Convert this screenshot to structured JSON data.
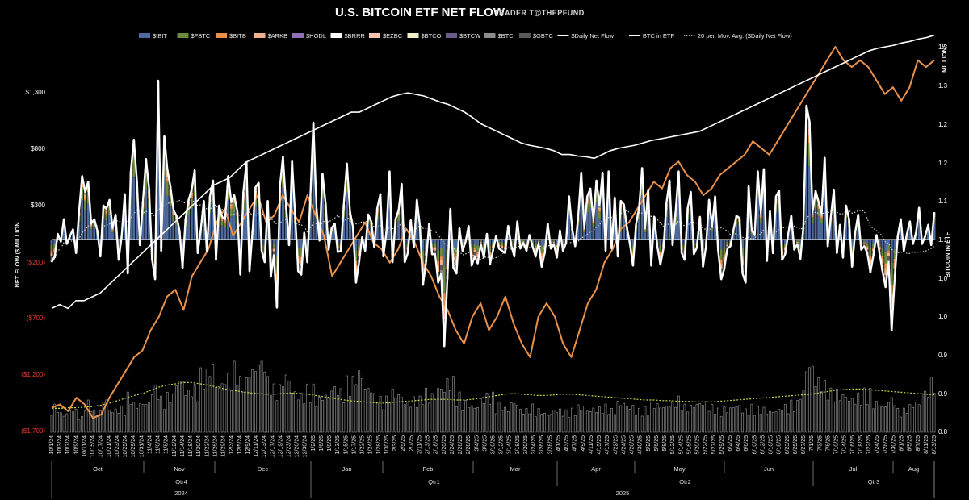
{
  "title": "U.S. BITCOIN ETF NET FLOW",
  "subtitle": "TRADER T@THEPFUND",
  "colors": {
    "IBIT": "#4e6a9c",
    "FBTC": "#6e8a3e",
    "BITB": "#e9914b",
    "ARKB": "#f2b08c",
    "HODL": "#8e6fb8",
    "BRRR": "#ffffff",
    "EZBC": "#f6c5b0",
    "BTCO": "#f3efc8",
    "BTCW": "#6b5a8e",
    "BTC": "#8c8c8c",
    "GBTC": "#5a5a5a",
    "daily": "#ffffff",
    "btc_in_etf": "#ffffff",
    "ma": "#d0d0d0",
    "price_line": "#e9914b",
    "volume": "#d9d9d9",
    "volume_ma": "#c8d84a",
    "negative_tick": "#e23a2a"
  },
  "chart_data": [
    {
      "type": "bar",
      "title": "U.S. BITCOIN ETF NET FLOW",
      "ylabel": "NET FLOW ($)MILLION",
      "y2label": "BITCOIN IN ETF",
      "y2unit": "MILLIONS",
      "ylim": [
        -1700,
        1800
      ],
      "y2lim": [
        0.8,
        1.35
      ],
      "yticks": [
        "$1,300",
        "$800",
        "$300",
        "($200)",
        "($700)",
        "($1,200)",
        "($1,700)"
      ],
      "y2ticks": [
        "1.3",
        "1.3",
        "1.2",
        "1.2",
        "1.1",
        "1.1",
        "1.0",
        "1.0",
        "0.9",
        "0.9",
        "0.8"
      ],
      "legend": [
        "$IBIT",
        "$FBTC",
        "$BITB",
        "$ARKB",
        "$HODL",
        "$BRRR",
        "$EZBC",
        "$BTCO",
        "$BTCW",
        "$BTC",
        "$GBTC",
        "$Daily Net Flow",
        "BTC in ETF",
        "20 per. Mov. Avg. ($Daily Net Flow)"
      ],
      "legend_placement": "top",
      "x_labels": [
        "10/1/24",
        "10/3/24",
        "10/7/24",
        "10/9/24",
        "10/11/24",
        "10/15/24",
        "10/17/24",
        "10/21/24",
        "10/23/24",
        "10/25/24",
        "10/29/24",
        "10/31/24",
        "11/4/24",
        "11/6/24",
        "11/8/24",
        "11/12/24",
        "11/14/24",
        "11/18/24",
        "11/20/24",
        "11/22/24",
        "11/26/24",
        "11/29/24",
        "12/3/24",
        "12/5/24",
        "12/9/24",
        "12/11/24",
        "12/13/24",
        "12/17/24",
        "12/19/24",
        "12/23/24",
        "12/26/24",
        "12/30/24",
        "1/2/25",
        "1/6/25",
        "1/8/25",
        "1/13/25",
        "1/15/25",
        "1/17/25",
        "1/22/25",
        "1/24/25",
        "1/28/25",
        "1/30/25",
        "2/3/25",
        "2/5/25",
        "2/7/25",
        "2/11/25",
        "2/13/25",
        "2/18/25",
        "2/20/25",
        "2/24/25",
        "2/26/25",
        "2/28/25",
        "3/4/25",
        "3/6/25",
        "3/10/25",
        "3/12/25",
        "3/14/25",
        "3/18/25",
        "3/20/25",
        "3/24/25",
        "3/26/25",
        "3/28/25",
        "4/1/25",
        "4/3/25",
        "4/7/25",
        "4/9/25",
        "4/11/25",
        "4/15/25",
        "4/17/25",
        "4/22/25",
        "4/24/25",
        "4/28/25",
        "4/30/25",
        "5/2/25",
        "5/6/25",
        "5/8/25",
        "5/12/25",
        "5/14/25",
        "5/16/25",
        "5/20/25",
        "5/22/25",
        "5/27/25",
        "5/29/25",
        "6/2/25",
        "6/4/25",
        "6/6/25",
        "6/10/25",
        "6/12/25",
        "6/16/25",
        "6/18/25",
        "6/23/25",
        "6/25/25",
        "6/27/25",
        "7/1/25",
        "7/3/25",
        "7/8/25",
        "7/10/25",
        "7/14/25",
        "7/16/25",
        "7/18/25",
        "7/22/25",
        "7/24/25",
        "7/28/25",
        "7/30/25",
        "8/1/25",
        "8/5/25",
        "8/7/25",
        "8/11/25",
        "8/13/25"
      ],
      "months": [
        "Oct",
        "Nov",
        "Dec",
        "Jan",
        "Feb",
        "Mar",
        "Apr",
        "May",
        "Jun",
        "Jul",
        "Aug"
      ],
      "quarters": [
        "Qtr4",
        "Qtr1",
        "Qtr2",
        "Qtr3"
      ],
      "years": [
        "2024",
        "2025"
      ],
      "series_daily_net_flow": [
        -200,
        -150,
        50,
        -20,
        180,
        -40,
        30,
        90,
        -120,
        250,
        560,
        420,
        510,
        140,
        180,
        80,
        -150,
        300,
        270,
        350,
        100,
        220,
        -180,
        30,
        400,
        -300,
        600,
        880,
        520,
        -50,
        340,
        710,
        450,
        -180,
        -350,
        1400,
        -100,
        910,
        620,
        470,
        260,
        210,
        80,
        -250,
        180,
        350,
        440,
        610,
        -120,
        90,
        340,
        -100,
        380,
        520,
        -180,
        300,
        200,
        180,
        560,
        330,
        390,
        250,
        -310,
        420,
        680,
        -280,
        80,
        460,
        500,
        -100,
        -200,
        340,
        -330,
        -140,
        -600,
        470,
        730,
        310,
        -50,
        690,
        210,
        -280,
        -310,
        60,
        -200,
        380,
        1030,
        280,
        -10,
        580,
        320,
        -90,
        100,
        140,
        -110,
        -100,
        310,
        670,
        250,
        110,
        -380,
        -200,
        20,
        -100,
        220,
        160,
        -70,
        280,
        400,
        -150,
        70,
        600,
        -200,
        180,
        260,
        490,
        -200,
        -120,
        170,
        -70,
        350,
        120,
        -400,
        -200,
        140,
        -130,
        -130,
        -380,
        -300,
        -940,
        -350,
        270,
        -250,
        -300,
        100,
        -100,
        -20,
        120,
        -230,
        -150,
        -210,
        -40,
        -160,
        50,
        -220,
        -100,
        30,
        -80,
        -100,
        -120,
        120,
        -50,
        -150,
        160,
        -80,
        -30,
        -100,
        40,
        -60,
        -150,
        -30,
        -240,
        -120,
        140,
        -80,
        -40,
        -160,
        80,
        -100,
        -30,
        380,
        100,
        -60,
        200,
        590,
        100,
        380,
        450,
        170,
        520,
        300,
        590,
        -100,
        600,
        -80,
        370,
        -150,
        340,
        310,
        110,
        -40,
        -230,
        130,
        280,
        630,
        100,
        440,
        -230,
        200,
        -60,
        -220,
        -80,
        320,
        520,
        -50,
        240,
        600,
        -120,
        -180,
        280,
        420,
        -130,
        -70,
        200,
        -240,
        -60,
        350,
        120,
        380,
        -100,
        -350,
        -260,
        -80,
        -60,
        80,
        210,
        190,
        -300,
        -380,
        470,
        80,
        40,
        600,
        230,
        620,
        -190,
        250,
        -120,
        380,
        430,
        -180,
        -130,
        50,
        210,
        -90,
        -40,
        -170,
        110,
        1180,
        1040,
        240,
        430,
        330,
        230,
        720,
        -60,
        200,
        440,
        -120,
        130,
        -160,
        300,
        180,
        -240,
        60,
        220,
        -90,
        -60,
        -120,
        -290,
        -140,
        40,
        -120,
        -280,
        -420,
        -200,
        -800,
        -340,
        30,
        180,
        -100,
        50,
        160,
        -40,
        60,
        280,
        -40,
        30,
        130,
        -50,
        240
      ],
      "series_btc_in_etf": [
        0.96,
        0.965,
        0.96,
        0.97,
        0.97,
        0.975,
        0.98,
        0.99,
        1.0,
        1.01,
        1.02,
        1.03,
        1.04,
        1.05,
        1.06,
        1.07,
        1.08,
        1.09,
        1.1,
        1.11,
        1.12,
        1.125,
        1.13,
        1.14,
        1.15,
        1.155,
        1.16,
        1.165,
        1.17,
        1.175,
        1.18,
        1.185,
        1.19,
        1.195,
        1.2,
        1.205,
        1.21,
        1.215,
        1.215,
        1.22,
        1.225,
        1.23,
        1.235,
        1.238,
        1.24,
        1.238,
        1.236,
        1.232,
        1.228,
        1.225,
        1.22,
        1.215,
        1.208,
        1.2,
        1.195,
        1.19,
        1.185,
        1.18,
        1.175,
        1.172,
        1.17,
        1.168,
        1.165,
        1.16,
        1.16,
        1.158,
        1.157,
        1.155,
        1.16,
        1.165,
        1.168,
        1.17,
        1.172,
        1.175,
        1.178,
        1.18,
        1.182,
        1.184,
        1.186,
        1.188,
        1.19,
        1.195,
        1.2,
        1.205,
        1.21,
        1.215,
        1.22,
        1.225,
        1.23,
        1.235,
        1.24,
        1.245,
        1.25,
        1.255,
        1.26,
        1.265,
        1.27,
        1.275,
        1.28,
        1.285,
        1.29,
        1.295,
        1.298,
        1.3,
        1.302,
        1.305,
        1.307,
        1.31,
        1.312,
        1.315
      ],
      "series_price_line": [
        0.985,
        0.99,
        0.98,
        1.0,
        0.99,
        0.97,
        0.975,
        1.0,
        1.02,
        1.04,
        1.06,
        1.07,
        1.1,
        1.12,
        1.15,
        1.16,
        1.13,
        1.18,
        1.2,
        1.22,
        1.26,
        1.28,
        1.24,
        1.26,
        1.28,
        1.3,
        1.26,
        1.27,
        1.3,
        1.28,
        1.26,
        1.3,
        1.27,
        1.24,
        1.18,
        1.2,
        1.22,
        1.24,
        1.26,
        1.23,
        1.22,
        1.2,
        1.22,
        1.25,
        1.23,
        1.2,
        1.18,
        1.15,
        1.13,
        1.1,
        1.08,
        1.12,
        1.14,
        1.1,
        1.12,
        1.15,
        1.11,
        1.08,
        1.06,
        1.12,
        1.14,
        1.12,
        1.08,
        1.06,
        1.1,
        1.14,
        1.16,
        1.2,
        1.22,
        1.25,
        1.26,
        1.28,
        1.3,
        1.32,
        1.31,
        1.34,
        1.35,
        1.33,
        1.32,
        1.3,
        1.31,
        1.33,
        1.34,
        1.35,
        1.36,
        1.38,
        1.37,
        1.36,
        1.38,
        1.4,
        1.42,
        1.44,
        1.46,
        1.48,
        1.5,
        1.52,
        1.5,
        1.49,
        1.5,
        1.49,
        1.47,
        1.45,
        1.46,
        1.44,
        1.46,
        1.5,
        1.49,
        1.5
      ]
    },
    {
      "type": "bar",
      "title": "",
      "values_scale": "relative",
      "volume_values": [
        0.35,
        0.25,
        0.3,
        0.2,
        0.4,
        0.28,
        0.45,
        0.3,
        0.33,
        0.5,
        0.38,
        0.4,
        0.6,
        0.45,
        0.5,
        0.7,
        0.55,
        0.6,
        0.8,
        0.9,
        0.65,
        0.75,
        0.95,
        0.7,
        0.85,
        1.0,
        0.7,
        0.6,
        0.75,
        0.55,
        0.5,
        0.6,
        0.45,
        0.5,
        0.6,
        0.55,
        0.7,
        0.8,
        0.6,
        0.5,
        0.45,
        0.55,
        0.5,
        0.4,
        0.45,
        0.55,
        0.5,
        0.6,
        0.7,
        0.5,
        0.4,
        0.35,
        0.45,
        0.5,
        0.38,
        0.32,
        0.4,
        0.3,
        0.35,
        0.3,
        0.25,
        0.3,
        0.28,
        0.3,
        0.35,
        0.3,
        0.32,
        0.35,
        0.3,
        0.4,
        0.35,
        0.3,
        0.32,
        0.38,
        0.35,
        0.4,
        0.45,
        0.35,
        0.38,
        0.4,
        0.35,
        0.3,
        0.32,
        0.36,
        0.3,
        0.35,
        0.32,
        0.28,
        0.3,
        0.35,
        0.4,
        0.55,
        0.9,
        0.7,
        0.65,
        0.55,
        0.5,
        0.45,
        0.5,
        0.55,
        0.4,
        0.35,
        0.45,
        0.3,
        0.35,
        0.4,
        0.55,
        0.7
      ],
      "volume_ma_values": [
        0.22,
        0.22,
        0.23,
        0.23,
        0.24,
        0.25,
        0.27,
        0.3,
        0.34,
        0.38,
        0.42,
        0.45,
        0.5,
        0.55,
        0.58,
        0.6,
        0.62,
        0.62,
        0.6,
        0.58,
        0.55,
        0.52,
        0.5,
        0.48,
        0.46,
        0.45,
        0.44,
        0.44,
        0.45,
        0.46,
        0.45,
        0.44,
        0.42,
        0.4,
        0.38,
        0.36,
        0.34,
        0.33,
        0.32,
        0.31,
        0.3,
        0.31,
        0.32,
        0.33,
        0.34,
        0.35,
        0.36,
        0.36,
        0.36,
        0.35,
        0.35,
        0.36,
        0.38,
        0.4,
        0.42,
        0.44,
        0.45,
        0.44,
        0.43,
        0.42,
        0.42,
        0.43,
        0.44,
        0.44,
        0.43,
        0.42,
        0.41,
        0.4,
        0.39,
        0.38,
        0.37,
        0.36,
        0.35,
        0.35,
        0.34,
        0.34,
        0.33,
        0.33,
        0.32,
        0.32,
        0.32,
        0.33,
        0.34,
        0.35,
        0.36,
        0.37,
        0.38,
        0.39,
        0.4,
        0.41,
        0.42,
        0.43,
        0.44,
        0.46,
        0.48,
        0.5,
        0.51,
        0.52,
        0.52,
        0.51,
        0.5,
        0.49,
        0.48,
        0.47,
        0.46,
        0.45,
        0.44,
        0.43
      ]
    }
  ]
}
